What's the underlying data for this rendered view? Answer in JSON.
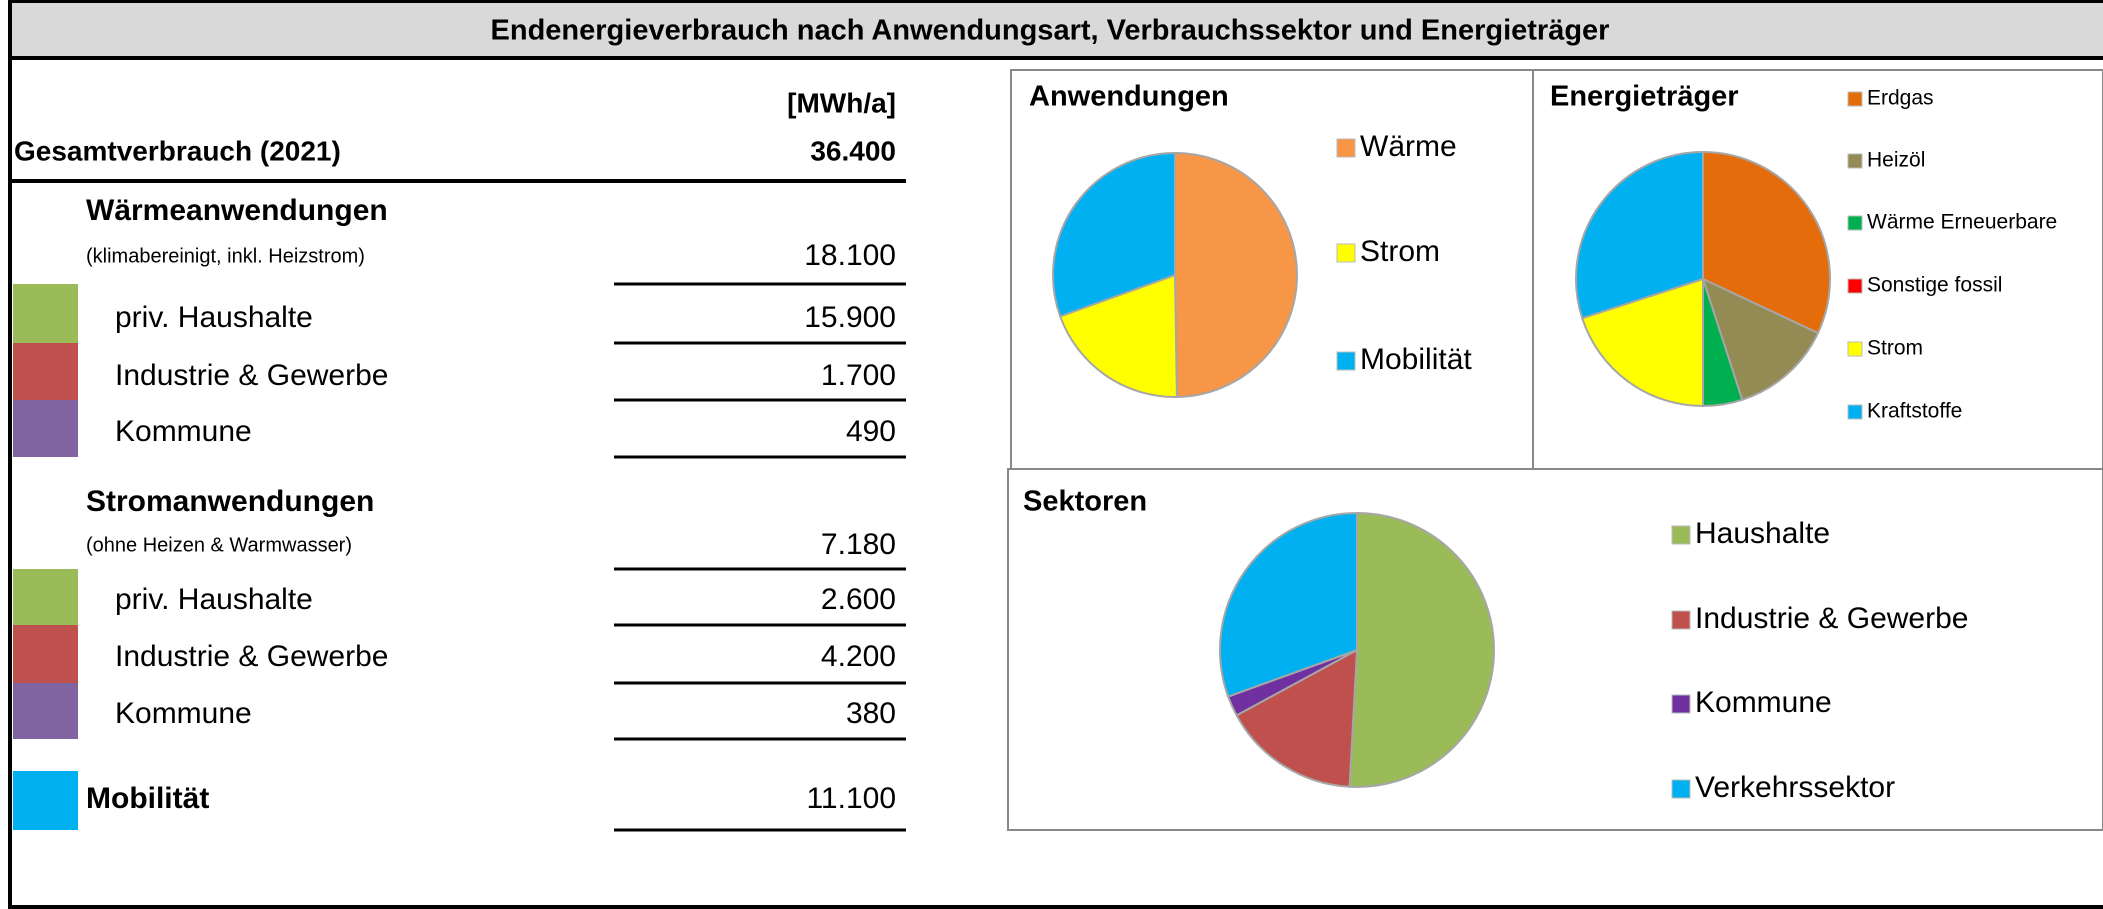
{
  "title": "Endenergieverbrauch nach Anwendungsart, Verbrauchssektor und Energieträger",
  "table": {
    "unit_header": "[MWh/a]",
    "total_label": "Gesamtverbrauch (2021)",
    "total_value": "36.400",
    "rows": [
      {
        "label": "Wärmeanwendungen",
        "note": "(klimabereinigt, inkl. Heizstrom)",
        "value": "18.100",
        "bold": true
      },
      {
        "label": "priv. Haushalte",
        "value": "15.900",
        "color": "#9bbb59"
      },
      {
        "label": "Industrie & Gewerbe",
        "value": "1.700",
        "color": "#c0504d"
      },
      {
        "label": "Kommune",
        "value": "490",
        "color": "#8064a2"
      },
      {
        "label": "Stromanwendungen",
        "note": "(ohne Heizen & Warmwasser)",
        "value": "7.180",
        "bold": true
      },
      {
        "label": "priv. Haushalte",
        "value": "2.600",
        "color": "#9bbb59"
      },
      {
        "label": "Industrie & Gewerbe",
        "value": "4.200",
        "color": "#c0504d"
      },
      {
        "label": "Kommune",
        "value": "380",
        "color": "#8064a2"
      },
      {
        "label": "Mobilität",
        "value": "11.100",
        "color": "#00b0f0",
        "bold": true
      }
    ]
  },
  "chart_data": [
    {
      "type": "pie",
      "title": "Anwendungen",
      "categories": [
        "Wärme",
        "Strom",
        "Mobilität"
      ],
      "values": [
        18100,
        7180,
        11100
      ],
      "colors": [
        "#f79646",
        "#ffff00",
        "#00b0f0"
      ]
    },
    {
      "type": "pie",
      "title": "Energieträger",
      "categories": [
        "Erdgas",
        "Heizöl",
        "Wärme Erneuerbare",
        "Sonstige fossil",
        "Strom",
        "Kraftstoffe"
      ],
      "values": [
        32,
        13,
        5,
        0,
        20,
        30
      ],
      "colors": [
        "#e46c0a",
        "#948a54",
        "#00b050",
        "#ff0000",
        "#ffff00",
        "#00b0f0"
      ]
    },
    {
      "type": "pie",
      "title": "Sektoren",
      "categories": [
        "Haushalte",
        "Industrie & Gewerbe",
        "Kommune",
        "Verkehrssektor"
      ],
      "values": [
        18500,
        5900,
        870,
        11100
      ],
      "colors": [
        "#9bbb59",
        "#c0504d",
        "#7030a0",
        "#00b0f0"
      ]
    }
  ]
}
